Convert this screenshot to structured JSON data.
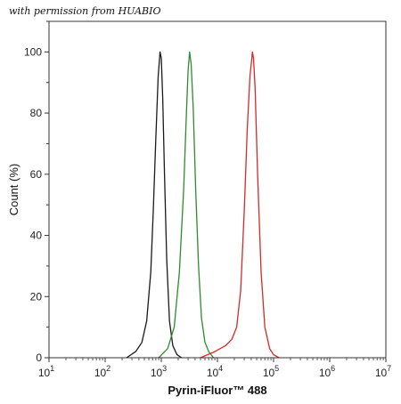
{
  "watermark": "with permission from HUABIO",
  "chart_data": {
    "type": "line",
    "xlabel": "Pyrin-iFluor™ 488",
    "ylabel": "Count  (%)",
    "xscale": "log",
    "xlim": [
      10,
      10000000
    ],
    "ylim": [
      0,
      110
    ],
    "x_tick_labels": [
      {
        "base": "10",
        "exp": "1"
      },
      {
        "base": "10",
        "exp": "2"
      },
      {
        "base": "10",
        "exp": "3"
      },
      {
        "base": "10",
        "exp": "4"
      },
      {
        "base": "10",
        "exp": "5"
      },
      {
        "base": "10",
        "exp": "6"
      },
      {
        "base": "10",
        "exp": "7"
      }
    ],
    "y_ticks": [
      0,
      20,
      40,
      60,
      80,
      100
    ],
    "y_tick_labels": [
      "0",
      "20",
      "40",
      "60",
      "80",
      "100"
    ],
    "grid": false,
    "legend": "none",
    "series": [
      {
        "color": "#1a1a1a",
        "x": [
          240,
          350,
          450,
          550,
          650,
          720,
          800,
          880,
          950,
          1000,
          1060,
          1140,
          1250,
          1400,
          1600,
          1900,
          2300
        ],
        "y": [
          0,
          2,
          5,
          12,
          28,
          48,
          72,
          92,
          100,
          98,
          85,
          60,
          32,
          12,
          4,
          1,
          0
        ]
      },
      {
        "color": "#2e8b2e",
        "x": [
          900,
          1300,
          1700,
          2100,
          2500,
          2800,
          3000,
          3200,
          3400,
          3700,
          4100,
          4600,
          5200,
          6000,
          7000,
          8500
        ],
        "y": [
          0,
          3,
          10,
          28,
          55,
          80,
          94,
          100,
          96,
          82,
          55,
          30,
          13,
          5,
          2,
          0
        ]
      },
      {
        "color": "#d42a2a",
        "x": [
          5000,
          9000,
          14000,
          18000,
          22000,
          26000,
          30000,
          34000,
          38000,
          42000,
          44000,
          47000,
          52000,
          60000,
          70000,
          85000,
          100000,
          125000
        ],
        "y": [
          0,
          2,
          4,
          6,
          10,
          22,
          48,
          75,
          92,
          100,
          98,
          88,
          60,
          28,
          10,
          3,
          1,
          0
        ]
      }
    ]
  }
}
